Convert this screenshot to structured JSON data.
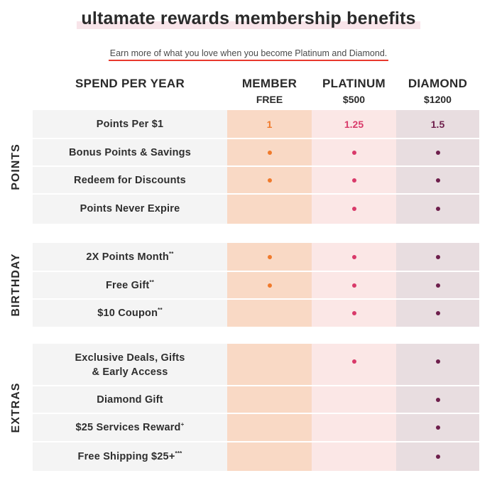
{
  "title": "ultamate rewards membership benefits",
  "subtitle": "Earn more of what you love when you become Platinum and Diamond.",
  "columns": {
    "spend": "SPEND PER YEAR",
    "member": {
      "name": "MEMBER",
      "price": "FREE"
    },
    "platinum": {
      "name": "PLATINUM",
      "price": "$500"
    },
    "diamond": {
      "name": "DIAMOND",
      "price": "$1200"
    }
  },
  "groups": [
    {
      "label": "POINTS",
      "rows": [
        {
          "label": "Points Per $1",
          "sup": "",
          "member": "1",
          "platinum": "1.25",
          "diamond": "1.5"
        },
        {
          "label": "Bonus Points & Savings",
          "sup": "",
          "member": true,
          "platinum": true,
          "diamond": true
        },
        {
          "label": "Redeem for Discounts",
          "sup": "",
          "member": true,
          "platinum": true,
          "diamond": true
        },
        {
          "label": "Points Never Expire",
          "sup": "",
          "member": false,
          "platinum": true,
          "diamond": true
        }
      ]
    },
    {
      "label": "BIRTHDAY",
      "rows": [
        {
          "label": "2X Points Month",
          "sup": "**",
          "member": true,
          "platinum": true,
          "diamond": true
        },
        {
          "label": "Free Gift",
          "sup": "**",
          "member": true,
          "platinum": true,
          "diamond": true
        },
        {
          "label": "$10 Coupon",
          "sup": "**",
          "member": false,
          "platinum": true,
          "diamond": true
        }
      ]
    },
    {
      "label": "EXTRAS",
      "rows": [
        {
          "label": "Exclusive Deals, Gifts",
          "label2": "& Early Access",
          "sup": "",
          "member": false,
          "platinum": true,
          "diamond": true
        },
        {
          "label": "Diamond Gift",
          "sup": "",
          "member": false,
          "platinum": false,
          "diamond": true
        },
        {
          "label": "$25 Services Reward",
          "sup": "+",
          "member": false,
          "platinum": false,
          "diamond": true
        },
        {
          "label": "Free Shipping $25+",
          "sup": "***",
          "member": false,
          "platinum": false,
          "diamond": true
        }
      ]
    }
  ],
  "colors": {
    "member": "#f07a2c",
    "platinum": "#d93a6a",
    "diamond": "#6e1f4c",
    "accent_underline": "#e8392d"
  }
}
